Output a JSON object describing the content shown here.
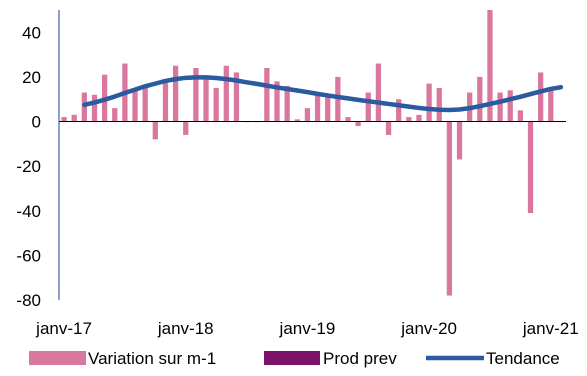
{
  "chart_data": {
    "type": "bar",
    "x_ticks": [
      "janv-17",
      "janv-18",
      "janv-19",
      "janv-20",
      "janv-21"
    ],
    "y_ticks": [
      40,
      20,
      0,
      -20,
      -40,
      -60,
      -80
    ],
    "ylim": [
      -80,
      50
    ],
    "grid": false,
    "legend_position": "bottom",
    "series": [
      {
        "name": "Variation sur m-1",
        "kind": "bar",
        "color": "#d9779e",
        "values": [
          2,
          3,
          13,
          12,
          21,
          6,
          26,
          14,
          16,
          -8,
          19,
          25,
          -6,
          24,
          19,
          15,
          25,
          22,
          0,
          0,
          24,
          18,
          16,
          1,
          6,
          12,
          11,
          20,
          2,
          -2,
          13,
          26,
          -6,
          10,
          2,
          3,
          17,
          15,
          -78,
          -17,
          13,
          20,
          50,
          13,
          14,
          5,
          -41,
          22,
          15,
          0
        ]
      },
      {
        "name": "Prod prev",
        "kind": "bar",
        "color": "#7b1268",
        "values": []
      },
      {
        "name": "Tendance",
        "kind": "line",
        "color": "#2a5aa0",
        "values": [
          null,
          null,
          7.5,
          8.5,
          9.8,
          11.2,
          12.8,
          14.3,
          15.8,
          17.0,
          18.2,
          19.0,
          19.6,
          19.8,
          19.8,
          19.5,
          19.0,
          18.4,
          17.6,
          16.9,
          16.1,
          15.3,
          14.6,
          13.9,
          13.2,
          12.4,
          11.7,
          11.0,
          10.4,
          9.7,
          9.1,
          8.5,
          7.9,
          7.3,
          6.7,
          6.1,
          5.6,
          5.3,
          5.2,
          5.4,
          6.0,
          6.9,
          7.9,
          8.9,
          10.0,
          11.1,
          12.3,
          13.5,
          14.6,
          15.4
        ]
      }
    ]
  }
}
